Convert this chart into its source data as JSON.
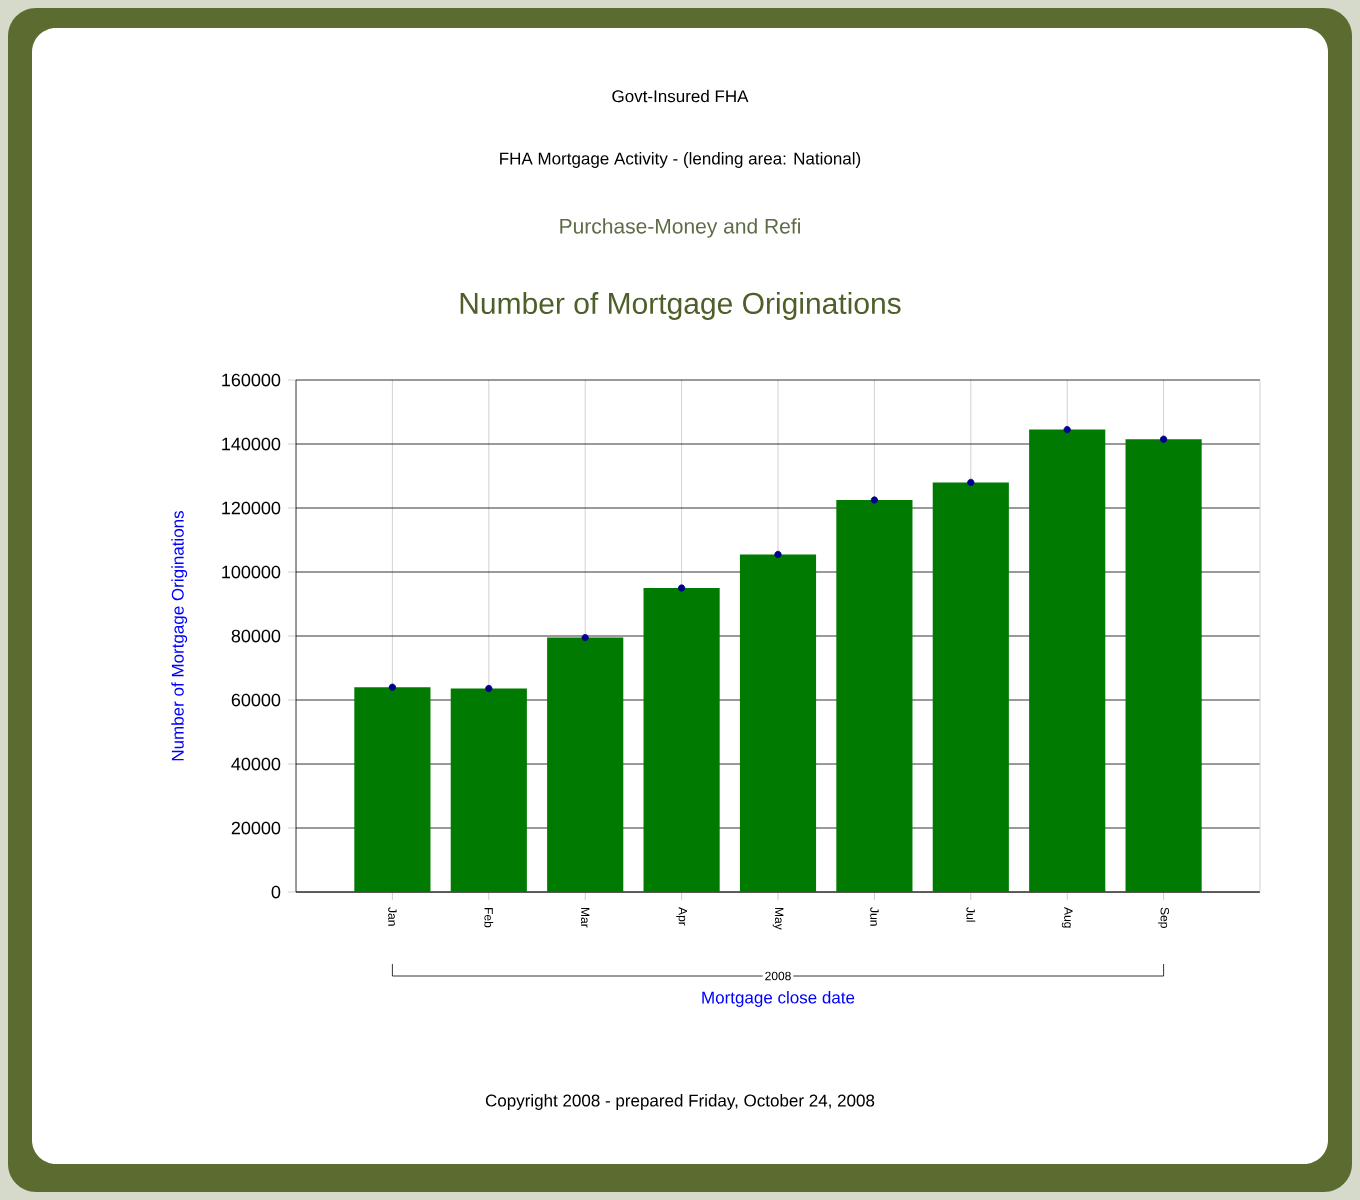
{
  "chart_data": {
    "type": "bar",
    "title": "Number of Mortgage Originations",
    "subtitle": "Purchase-Money and Refi",
    "annotations": [
      "Govt-Insured FHA",
      "FHA Mortgage Activity - (lending area: National)",
      "2008",
      "Copyright 2008 - prepared Friday, October 24, 2008"
    ],
    "xlabel": "Mortgage close date",
    "ylabel": "Number of Mortgage Originations",
    "categories": [
      "Jan",
      "Feb",
      "Mar",
      "Apr",
      "May",
      "Jun",
      "Jul",
      "Aug",
      "Sep"
    ],
    "series": [
      {
        "color": "#007a00",
        "values": [
          64000,
          63600,
          79500,
          95000,
          105500,
          122500,
          128000,
          144500,
          141500
        ]
      },
      {
        "type": "scatter",
        "color": "#00008c",
        "x": [
          "Jan",
          "Feb",
          "Mar",
          "Apr",
          "May",
          "Jun",
          "Jul",
          "Aug",
          "Sep"
        ],
        "values": [
          64000,
          63600,
          79500,
          95000,
          105500,
          122500,
          128000,
          144500,
          141500
        ]
      }
    ],
    "marker": "circle",
    "ylim": [
      0,
      160000
    ],
    "yticks": [
      0,
      20000,
      40000,
      60000,
      80000,
      100000,
      120000,
      140000,
      160000
    ],
    "grid": true
  }
}
